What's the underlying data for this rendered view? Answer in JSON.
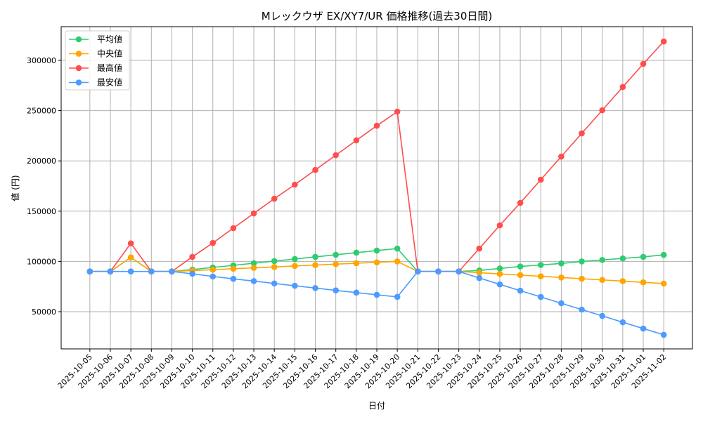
{
  "chart_data": {
    "type": "line",
    "title": "Mレックウザ EX/XY7/UR 価格推移(過去30日間)",
    "xlabel": "日付",
    "ylabel": "値 (円)",
    "ylim": [
      13000,
      333500
    ],
    "yticks": [
      50000,
      100000,
      150000,
      200000,
      250000,
      300000
    ],
    "grid": true,
    "legend_placement": "top-left",
    "x": [
      "2025-10-05",
      "2025-10-06",
      "2025-10-07",
      "2025-10-08",
      "2025-10-09",
      "2025-10-10",
      "2025-10-11",
      "2025-10-12",
      "2025-10-13",
      "2025-10-14",
      "2025-10-15",
      "2025-10-16",
      "2025-10-17",
      "2025-10-18",
      "2025-10-19",
      "2025-10-20",
      "2025-10-21",
      "2025-10-22",
      "2025-10-23",
      "2025-10-24",
      "2025-10-25",
      "2025-10-26",
      "2025-10-27",
      "2025-10-28",
      "2025-10-29",
      "2025-10-30",
      "2025-10-31",
      "2025-11-01",
      "2025-11-02"
    ],
    "series": [
      {
        "name": "平均値",
        "color": "#2ecc71",
        "values": [
          90000,
          90000,
          104000,
          90000,
          90000,
          91900,
          94000,
          96100,
          98200,
          100300,
          102400,
          104500,
          106600,
          108700,
          110800,
          112800,
          90000,
          90000,
          90000,
          91000,
          93000,
          95000,
          96500,
          98000,
          100000,
          101500,
          103000,
          104500,
          106500
        ]
      },
      {
        "name": "中央値",
        "color": "#ffa500",
        "values": [
          90000,
          90000,
          104000,
          90000,
          90000,
          90900,
          91800,
          92700,
          93600,
          94500,
          95500,
          96400,
          97300,
          98200,
          99100,
          100000,
          90000,
          90000,
          90000,
          88800,
          87600,
          86400,
          85200,
          84000,
          82800,
          81600,
          80400,
          79200,
          78000
        ]
      },
      {
        "name": "最高値",
        "color": "#ff4d4d",
        "values": [
          90000,
          90000,
          118000,
          90000,
          90000,
          104500,
          118400,
          133100,
          147800,
          162400,
          176400,
          191000,
          205700,
          220400,
          235000,
          249000,
          90000,
          90000,
          90000,
          112800,
          135900,
          158200,
          181300,
          204300,
          227400,
          250400,
          273500,
          296500,
          318800
        ]
      },
      {
        "name": "最安値",
        "color": "#4d9bff",
        "values": [
          90000,
          90000,
          90000,
          90000,
          90000,
          87700,
          85000,
          82700,
          80400,
          78100,
          75800,
          73500,
          71200,
          69000,
          66800,
          64700,
          90000,
          90000,
          90000,
          83500,
          77200,
          70900,
          64700,
          58400,
          52100,
          45800,
          39500,
          33200,
          27000
        ]
      }
    ]
  }
}
